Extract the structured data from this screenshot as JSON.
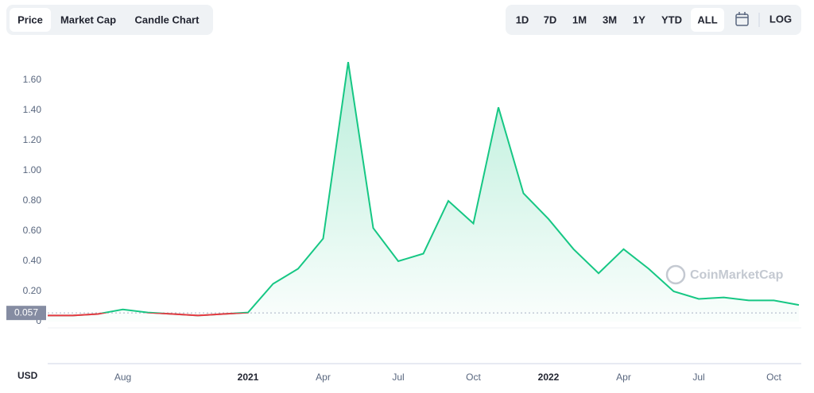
{
  "ui": {
    "tabs": [
      {
        "label": "Price",
        "active": true
      },
      {
        "label": "Market Cap",
        "active": false
      },
      {
        "label": "Candle Chart",
        "active": false
      }
    ],
    "ranges": [
      {
        "label": "1D",
        "active": false
      },
      {
        "label": "7D",
        "active": false
      },
      {
        "label": "1M",
        "active": false
      },
      {
        "label": "3M",
        "active": false
      },
      {
        "label": "1Y",
        "active": false
      },
      {
        "label": "YTD",
        "active": false
      },
      {
        "label": "ALL",
        "active": true
      }
    ],
    "scale_button": "LOG",
    "watermark": "CoinMarketCap",
    "currency": "USD"
  },
  "chart_data": {
    "type": "line",
    "x": [
      "2020-05",
      "2020-06",
      "2020-07",
      "2020-08",
      "2020-09",
      "2020-10",
      "2020-11",
      "2020-12",
      "2021-01",
      "2021-02",
      "2021-03",
      "2021-04",
      "2021-05",
      "2021-06",
      "2021-07",
      "2021-08",
      "2021-09",
      "2021-10",
      "2021-11",
      "2021-12",
      "2022-01",
      "2022-02",
      "2022-03",
      "2022-04",
      "2022-05",
      "2022-06",
      "2022-07",
      "2022-08",
      "2022-09",
      "2022-10",
      "2022-11"
    ],
    "values": [
      0.04,
      0.04,
      0.05,
      0.08,
      0.06,
      0.05,
      0.04,
      0.05,
      0.06,
      0.25,
      0.35,
      0.55,
      1.72,
      0.62,
      0.4,
      0.45,
      0.8,
      0.65,
      1.42,
      0.85,
      0.68,
      0.48,
      0.32,
      0.48,
      0.35,
      0.2,
      0.15,
      0.16,
      0.14,
      0.14,
      0.11
    ],
    "color": "#16c784",
    "below_color": "#ea3943",
    "reference": 0.057,
    "xlim": [
      "2020-05",
      "2022-11"
    ],
    "xticks": [
      {
        "value": "2020-08",
        "label": "Aug"
      },
      {
        "value": "2021-01",
        "label": "2021"
      },
      {
        "value": "2021-04",
        "label": "Apr"
      },
      {
        "value": "2021-07",
        "label": "Jul"
      },
      {
        "value": "2021-10",
        "label": "Oct"
      },
      {
        "value": "2022-01",
        "label": "2022"
      },
      {
        "value": "2022-04",
        "label": "Apr"
      },
      {
        "value": "2022-07",
        "label": "Jul"
      },
      {
        "value": "2022-10",
        "label": "Oct"
      }
    ],
    "ylim": [
      0,
      1.8
    ],
    "yticks": [
      0,
      {
        "value": 0.2,
        "label": "0.20"
      },
      {
        "value": 0.4,
        "label": "0.40"
      },
      {
        "value": 0.6,
        "label": "0.60"
      },
      {
        "value": 0.8,
        "label": "0.80"
      },
      {
        "value": 1.0,
        "label": "1.00"
      },
      {
        "value": 1.2,
        "label": "1.20"
      },
      {
        "value": 1.4,
        "label": "1.40"
      },
      {
        "value": 1.6,
        "label": "1.60"
      }
    ]
  }
}
